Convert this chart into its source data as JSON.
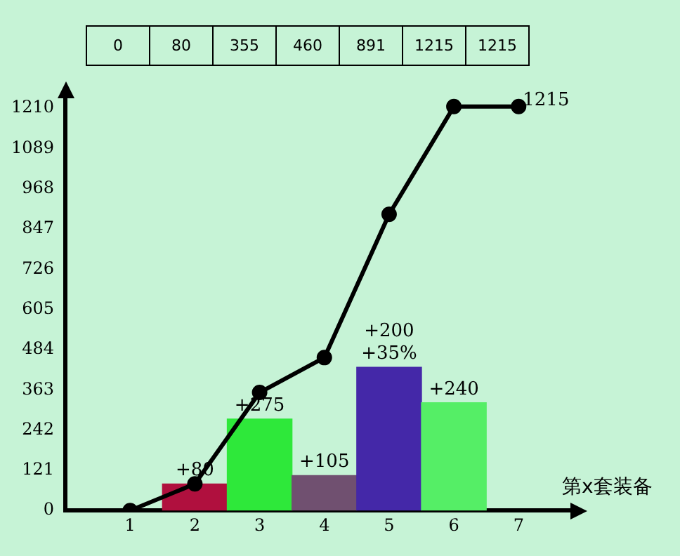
{
  "chart_data": {
    "type": "bar",
    "xlabel": "第x套装备",
    "x": [
      1,
      2,
      3,
      4,
      5,
      6,
      7
    ],
    "series": [
      {
        "values": [
          null,
          80,
          275,
          105,
          431,
          324,
          null
        ],
        "colors": [
          null,
          "#b0103e",
          "#2ee83a",
          "#705070",
          "#4428a8",
          "#55ee66",
          null
        ]
      },
      {
        "type": "line",
        "color": "#000000",
        "values": [
          0,
          80,
          355,
          460,
          891,
          1215,
          1215
        ],
        "value_labels": [
          null,
          null,
          null,
          null,
          null,
          null,
          "1215"
        ]
      }
    ],
    "annotations": [
      "0",
      "80",
      "355",
      "460",
      "891",
      "1215",
      "1215",
      {
        "text": "+80",
        "x": 2,
        "y": 80
      },
      {
        "text": "+275",
        "x": 3,
        "y": 275
      },
      {
        "text": "+105",
        "x": 4,
        "y": 105
      },
      {
        "text": "+200\n+35%",
        "x": 5,
        "y": 431
      },
      {
        "text": "+240",
        "x": 6,
        "y": 324
      }
    ],
    "xlim": [
      0,
      7.8
    ],
    "xticks": [
      1,
      2,
      3,
      4,
      5,
      6,
      7
    ],
    "ylim": [
      0,
      1240
    ],
    "yticks": [
      0,
      121,
      242,
      363,
      484,
      605,
      726,
      847,
      968,
      1089,
      1210
    ],
    "grid": false,
    "legend": false,
    "marker": "circle",
    "line_style": "solid"
  }
}
